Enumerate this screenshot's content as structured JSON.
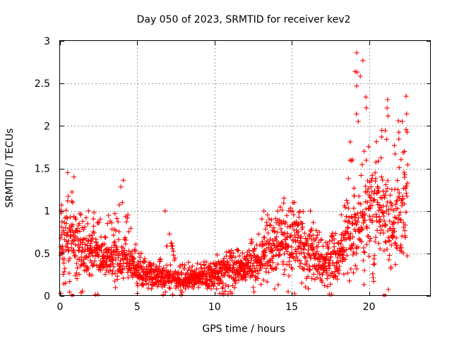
{
  "chart_data": {
    "type": "scatter",
    "title": "Day 050 of 2023, SRMTID for receiver kev2",
    "xlabel": "GPS time / hours",
    "ylabel": "SRMTID / TECUs",
    "xlim": [
      0,
      24
    ],
    "ylim": [
      0,
      3
    ],
    "xticks": [
      0,
      5,
      10,
      15,
      20
    ],
    "xtick_labels": [
      "0",
      "5",
      "10",
      "15",
      "20"
    ],
    "yticks": [
      0,
      0.5,
      1,
      1.5,
      2,
      2.5,
      3
    ],
    "ytick_labels": [
      "0",
      "0.5",
      "1",
      "1.5",
      "2",
      "2.5",
      "3"
    ],
    "grid": true,
    "series": [
      {
        "name": "SRMTID",
        "marker": "plus",
        "color": "#ff0000",
        "profile": {
          "hours": [
            0,
            0.5,
            1,
            1.5,
            2,
            2.5,
            3,
            3.5,
            4,
            4.5,
            5,
            5.5,
            6,
            6.5,
            7,
            7.5,
            8,
            8.5,
            9,
            9.5,
            10,
            10.5,
            11,
            11.5,
            12,
            12.5,
            13,
            13.5,
            14,
            14.5,
            15,
            15.5,
            16,
            16.5,
            17,
            17.5,
            18,
            18.5,
            19,
            19.5,
            20,
            20.5,
            21,
            21.5,
            22,
            22.5
          ],
          "typical": [
            0.55,
            0.6,
            0.55,
            0.5,
            0.5,
            0.45,
            0.45,
            0.45,
            0.45,
            0.4,
            0.3,
            0.25,
            0.22,
            0.22,
            0.25,
            0.2,
            0.18,
            0.2,
            0.2,
            0.22,
            0.25,
            0.28,
            0.3,
            0.3,
            0.32,
            0.35,
            0.45,
            0.5,
            0.55,
            0.65,
            0.7,
            0.6,
            0.5,
            0.45,
            0.35,
            0.35,
            0.4,
            0.7,
            0.8,
            0.9,
            1.0,
            1.0,
            0.9,
            0.8,
            0.8,
            1.2
          ],
          "upper": [
            1.05,
            1.45,
            1.1,
            1.0,
            1.05,
            0.95,
            1.0,
            0.95,
            1.35,
            0.85,
            0.6,
            0.45,
            0.4,
            0.45,
            1.0,
            0.45,
            0.4,
            0.4,
            0.4,
            0.45,
            0.5,
            0.55,
            0.55,
            0.55,
            0.6,
            0.7,
            1.0,
            0.95,
            1.0,
            1.1,
            1.15,
            1.05,
            0.95,
            0.85,
            0.7,
            0.7,
            0.85,
            1.2,
            2.85,
            2.75,
            2.1,
            1.9,
            2.3,
            2.35,
            2.35,
            2.3
          ]
        },
        "highlight_points": [
          {
            "x": 19.2,
            "y": 2.86
          },
          {
            "x": 19.6,
            "y": 2.77
          },
          {
            "x": 19.1,
            "y": 2.64
          },
          {
            "x": 19.2,
            "y": 2.47
          },
          {
            "x": 19.8,
            "y": 2.34
          },
          {
            "x": 21.2,
            "y": 2.31
          },
          {
            "x": 22.4,
            "y": 2.35
          },
          {
            "x": 0.9,
            "y": 1.4
          },
          {
            "x": 0.5,
            "y": 1.45
          },
          {
            "x": 4.1,
            "y": 1.36
          },
          {
            "x": 6.8,
            "y": 1.0
          },
          {
            "x": 14.5,
            "y": 1.15
          },
          {
            "x": 13.2,
            "y": 1.0
          },
          {
            "x": 16.2,
            "y": 1.0
          },
          {
            "x": 0.8,
            "y": 0.0
          },
          {
            "x": 21.0,
            "y": 0.0
          }
        ]
      }
    ]
  }
}
